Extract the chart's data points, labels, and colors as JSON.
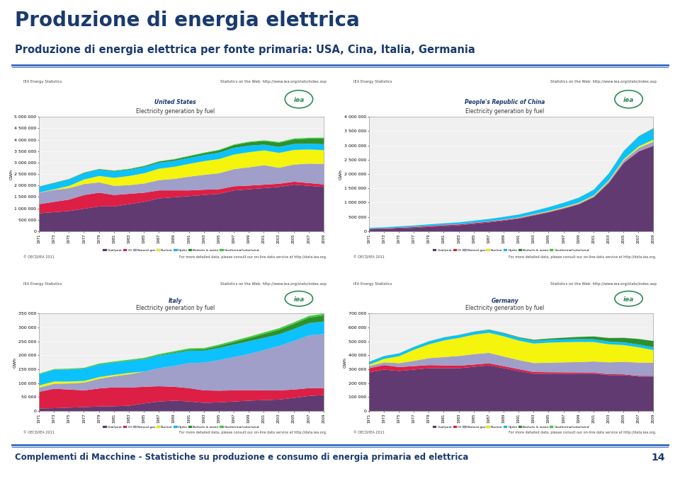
{
  "title": "Produzione di energia elettrica",
  "subtitle": "Produzione di energia elettrica per fonte primaria: USA, Cina, Italia, Germania",
  "title_color": "#1a3a6e",
  "subtitle_color": "#1a3a6e",
  "background_color": "#ffffff",
  "header_line_color": "#4472c4",
  "footer_line_color": "#4472c4",
  "footer_text": "Complementi di Macchine - Statistiche su produzione e consumo di energia primaria ed elettrica",
  "footer_page": "14",
  "footer_color": "#1a3a6e",
  "charts": [
    {
      "title_line1": "Electricity generation by fuel",
      "title_line2": "United States",
      "title_italic_color": "#1a3a6e",
      "years": [
        1971,
        1973,
        1975,
        1977,
        1979,
        1981,
        1983,
        1985,
        1987,
        1989,
        1991,
        1993,
        1995,
        1997,
        1999,
        2001,
        2003,
        2005,
        2007,
        2009
      ],
      "coal": [
        800000,
        850000,
        900000,
        1000000,
        1100000,
        1100000,
        1200000,
        1300000,
        1450000,
        1500000,
        1550000,
        1600000,
        1650000,
        1800000,
        1850000,
        1900000,
        1950000,
        2050000,
        2000000,
        1950000
      ],
      "oil": [
        400000,
        450000,
        500000,
        600000,
        600000,
        500000,
        450000,
        400000,
        350000,
        300000,
        250000,
        230000,
        200000,
        180000,
        160000,
        150000,
        140000,
        130000,
        120000,
        110000
      ],
      "gas": [
        500000,
        520000,
        500000,
        480000,
        450000,
        400000,
        380000,
        400000,
        450000,
        500000,
        600000,
        650000,
        700000,
        750000,
        800000,
        850000,
        700000,
        750000,
        850000,
        900000
      ],
      "nuclear": [
        10000,
        30000,
        100000,
        200000,
        280000,
        350000,
        400000,
        450000,
        500000,
        530000,
        560000,
        600000,
        620000,
        640000,
        660000,
        650000,
        650000,
        640000,
        620000,
        600000
      ],
      "hydro": [
        250000,
        270000,
        280000,
        280000,
        280000,
        280000,
        270000,
        270000,
        260000,
        260000,
        260000,
        270000,
        280000,
        290000,
        290000,
        250000,
        260000,
        260000,
        250000,
        260000
      ],
      "biofuels": [
        10000,
        12000,
        15000,
        18000,
        20000,
        25000,
        30000,
        40000,
        50000,
        60000,
        70000,
        80000,
        100000,
        120000,
        140000,
        160000,
        180000,
        200000,
        220000,
        240000
      ],
      "geothermal": [
        5000,
        6000,
        7000,
        8000,
        9000,
        10000,
        12000,
        14000,
        16000,
        18000,
        20000,
        22000,
        25000,
        28000,
        30000,
        32000,
        35000,
        38000,
        40000,
        42000
      ],
      "ymax": 5000000,
      "yticks": [
        0,
        500000,
        1000000,
        1500000,
        2000000,
        2500000,
        3000000,
        3500000,
        4000000,
        4500000,
        5000000
      ],
      "ytick_labels": [
        "0",
        "500 000",
        "1 000 000",
        "1 500 000",
        "2 000 000",
        "2 500 000",
        "3 000 000",
        "3 500 000",
        "4 000 000",
        "4 500 000",
        "5 000 000"
      ]
    },
    {
      "title_line1": "Electricity generation by fuel",
      "title_line2": "People's Republic of China",
      "title_italic_color": "#1a3a6e",
      "years": [
        1971,
        1973,
        1975,
        1977,
        1979,
        1981,
        1983,
        1985,
        1987,
        1989,
        1991,
        1993,
        1995,
        1997,
        1999,
        2001,
        2003,
        2005,
        2007,
        2009
      ],
      "coal": [
        80000,
        90000,
        110000,
        130000,
        160000,
        190000,
        220000,
        270000,
        320000,
        380000,
        450000,
        560000,
        670000,
        800000,
        950000,
        1200000,
        1700000,
        2400000,
        2800000,
        3000000
      ],
      "oil": [
        15000,
        20000,
        25000,
        30000,
        35000,
        35000,
        32000,
        30000,
        28000,
        25000,
        22000,
        20000,
        18000,
        16000,
        14000,
        12000,
        12000,
        12000,
        12000,
        11000
      ],
      "gas": [
        2000,
        3000,
        4000,
        5000,
        6000,
        7000,
        8000,
        9000,
        10000,
        11000,
        12000,
        14000,
        16000,
        18000,
        22000,
        30000,
        50000,
        80000,
        110000,
        140000
      ],
      "nuclear": [
        0,
        0,
        0,
        0,
        0,
        0,
        0,
        0,
        0,
        5000,
        10000,
        14000,
        18000,
        22000,
        25000,
        28000,
        32000,
        40000,
        60000,
        70000
      ],
      "hydro": [
        30000,
        35000,
        40000,
        45000,
        50000,
        55000,
        60000,
        70000,
        80000,
        90000,
        100000,
        110000,
        130000,
        150000,
        170000,
        190000,
        230000,
        280000,
        340000,
        380000
      ],
      "biofuels": [
        1000,
        1200,
        1400,
        1600,
        1800,
        2000,
        2200,
        2500,
        2800,
        3000,
        3200,
        3500,
        4000,
        4500,
        5000,
        6000,
        8000,
        10000,
        14000,
        18000
      ],
      "geothermal": [
        100,
        120,
        140,
        160,
        180,
        200,
        220,
        240,
        260,
        280,
        300,
        320,
        340,
        360,
        380,
        400,
        500,
        600,
        800,
        1000
      ],
      "ymax": 4000000,
      "yticks": [
        0,
        500000,
        1000000,
        1500000,
        2000000,
        2500000,
        3000000,
        3500000,
        4000000
      ],
      "ytick_labels": [
        "0",
        "500 000",
        "1 000 000",
        "1 500 000",
        "2 000 000",
        "2 500 000",
        "3 000 000",
        "3 500 000",
        "4 000 000"
      ]
    },
    {
      "title_line1": "Electricity generation by fuel",
      "title_line2": "Italy",
      "title_italic_color": "#1a3a6e",
      "years": [
        1971,
        1973,
        1975,
        1977,
        1979,
        1981,
        1983,
        1985,
        1987,
        1989,
        1991,
        1993,
        1995,
        1997,
        1999,
        2001,
        2003,
        2005,
        2007,
        2009
      ],
      "coal": [
        10000,
        11000,
        13000,
        15000,
        17000,
        18000,
        20000,
        28000,
        35000,
        38000,
        35000,
        30000,
        32000,
        35000,
        38000,
        40000,
        42000,
        48000,
        55000,
        58000
      ],
      "oil": [
        60000,
        70000,
        65000,
        60000,
        65000,
        68000,
        65000,
        60000,
        55000,
        50000,
        48000,
        45000,
        42000,
        40000,
        38000,
        35000,
        33000,
        30000,
        28000,
        25000
      ],
      "gas": [
        15000,
        18000,
        22000,
        28000,
        35000,
        40000,
        48000,
        55000,
        65000,
        75000,
        90000,
        100000,
        110000,
        120000,
        130000,
        145000,
        160000,
        175000,
        190000,
        195000
      ],
      "nuclear": [
        8000,
        8000,
        7000,
        6000,
        6000,
        5000,
        5000,
        0,
        0,
        0,
        0,
        0,
        0,
        0,
        0,
        0,
        0,
        0,
        0,
        0
      ],
      "hydro": [
        40000,
        42000,
        43000,
        44000,
        45000,
        44000,
        43000,
        44000,
        45000,
        46000,
        45000,
        43000,
        44000,
        45000,
        46000,
        44000,
        42000,
        43000,
        44000,
        45000
      ],
      "biofuels": [
        500,
        600,
        700,
        800,
        900,
        1000,
        1200,
        1500,
        2000,
        3000,
        4000,
        5000,
        7000,
        9000,
        11000,
        14000,
        16000,
        18000,
        20000,
        22000
      ],
      "geothermal": [
        2000,
        2200,
        2400,
        2600,
        2800,
        3000,
        3200,
        3500,
        3800,
        4000,
        4200,
        4500,
        4800,
        5000,
        5200,
        5500,
        5700,
        5900,
        6000,
        6100
      ],
      "ymax": 350000,
      "yticks": [
        0,
        50000,
        100000,
        150000,
        200000,
        250000,
        300000,
        350000
      ],
      "ytick_labels": [
        "0",
        "50 000",
        "100 000",
        "150 000",
        "200 000",
        "250 000",
        "300 000",
        "350 000"
      ]
    },
    {
      "title_line1": "Electricity generation by fuel",
      "title_line2": "Germany",
      "title_italic_color": "#1a3a6e",
      "years": [
        1971,
        1973,
        1975,
        1977,
        1979,
        1981,
        1983,
        1985,
        1987,
        1989,
        1991,
        1993,
        1995,
        1997,
        1999,
        2001,
        2003,
        2005,
        2007,
        2009
      ],
      "coal": [
        280000,
        300000,
        290000,
        300000,
        310000,
        310000,
        310000,
        320000,
        330000,
        310000,
        290000,
        270000,
        270000,
        270000,
        270000,
        270000,
        260000,
        260000,
        250000,
        250000
      ],
      "oil": [
        30000,
        32000,
        28000,
        25000,
        22000,
        20000,
        18000,
        16000,
        15000,
        14000,
        13000,
        12000,
        11000,
        10000,
        9000,
        8000,
        7000,
        6000,
        5000,
        5000
      ],
      "gas": [
        15000,
        20000,
        28000,
        38000,
        50000,
        60000,
        70000,
        75000,
        75000,
        70000,
        65000,
        65000,
        68000,
        72000,
        75000,
        80000,
        85000,
        90000,
        95000,
        95000
      ],
      "nuclear": [
        10000,
        25000,
        50000,
        80000,
        100000,
        120000,
        130000,
        140000,
        145000,
        145000,
        140000,
        140000,
        145000,
        145000,
        145000,
        140000,
        130000,
        120000,
        110000,
        90000
      ],
      "hydro": [
        20000,
        20000,
        20000,
        20000,
        21000,
        21000,
        20000,
        20000,
        20000,
        21000,
        20000,
        20000,
        20000,
        20000,
        20000,
        20000,
        20000,
        20000,
        20000,
        20000
      ],
      "biofuels": [
        500,
        600,
        700,
        800,
        1000,
        1200,
        1500,
        2000,
        3000,
        4000,
        5000,
        7000,
        9000,
        12000,
        16000,
        20000,
        25000,
        32000,
        40000,
        45000
      ],
      "geothermal": [
        100,
        120,
        140,
        160,
        180,
        200,
        220,
        250,
        280,
        300,
        320,
        350,
        380,
        400,
        420,
        450,
        480,
        500,
        520,
        540
      ],
      "ymax": 700000,
      "yticks": [
        0,
        100000,
        200000,
        300000,
        400000,
        500000,
        600000,
        700000
      ],
      "ytick_labels": [
        "0",
        "100 000",
        "200 000",
        "300 000",
        "400 000",
        "500 000",
        "600 000",
        "700 000"
      ]
    }
  ],
  "layer_colors": {
    "coal": "#59306b",
    "oil": "#dc143c",
    "gas": "#9b9bc8",
    "nuclear": "#f5f500",
    "hydro": "#00bfff",
    "biofuels": "#228b22",
    "geothermal": "#32cd32"
  },
  "layer_order": [
    "coal",
    "oil",
    "gas",
    "nuclear",
    "hydro",
    "biofuels",
    "geothermal"
  ],
  "legend_labels": [
    "Coal/peat",
    "Oil",
    "Natural gas",
    "Nuclear",
    "Hydro",
    "Biofuels & waste",
    "Geothermal/solar/wind"
  ],
  "iea_header_left": "IEA Energy Statistics",
  "iea_header_right": "Statistics on the Web: http://www.iea.org/stats/index.asp",
  "iea_footer_left": "© OECD/IEA 2011",
  "iea_footer_right": "For more detailed data, please consult our on-line data service at http://data.iea.org."
}
